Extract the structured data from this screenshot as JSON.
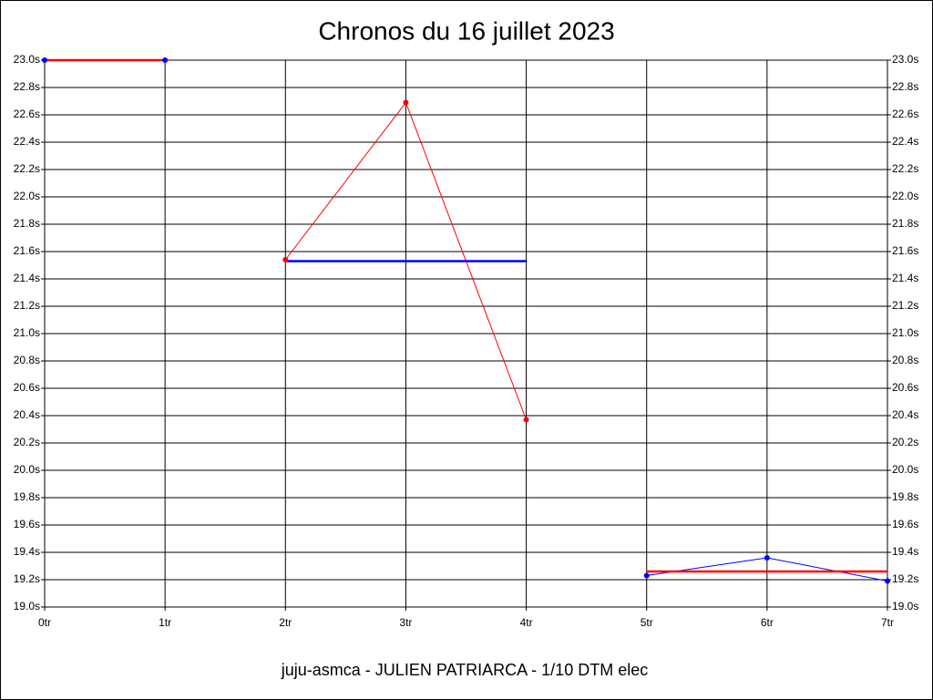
{
  "chart_data": {
    "type": "line",
    "title": "Chronos du 16 juillet 2023",
    "footer": "juju-asmca - JULIEN PATRIARCA - 1/10 DTM elec",
    "categories": [
      "0tr",
      "1tr",
      "2tr",
      "3tr",
      "4tr",
      "5tr",
      "6tr",
      "7tr"
    ],
    "series": [
      {
        "color": "#0000ff",
        "line_width": 1,
        "markers": true,
        "values": [
          23.0,
          23.0,
          null,
          null,
          null,
          19.23,
          19.36,
          19.19
        ]
      },
      {
        "color": "#ff0000",
        "line_width": 1,
        "markers": true,
        "values": [
          null,
          null,
          21.54,
          22.69,
          20.37,
          null,
          null,
          null
        ]
      },
      {
        "color": "#ff0000",
        "line_width": 2.5,
        "markers": false,
        "values": [
          23.0,
          23.0,
          null,
          null,
          null,
          19.26,
          19.26,
          19.26
        ]
      },
      {
        "color": "#0000ff",
        "line_width": 2.5,
        "markers": false,
        "values": [
          null,
          null,
          21.53,
          21.53,
          21.53,
          null,
          null,
          null
        ]
      }
    ],
    "ylim": [
      19.0,
      23.0
    ],
    "yticks": [
      {
        "value": 19.0,
        "label": "19.0s"
      },
      {
        "value": 19.2,
        "label": "19.2s"
      },
      {
        "value": 19.4,
        "label": "19.4s"
      },
      {
        "value": 19.6,
        "label": "19.6s"
      },
      {
        "value": 19.8,
        "label": "19.8s"
      },
      {
        "value": 20.0,
        "label": "20.0s"
      },
      {
        "value": 20.2,
        "label": "20.2s"
      },
      {
        "value": 20.4,
        "label": "20.4s"
      },
      {
        "value": 20.6,
        "label": "20.6s"
      },
      {
        "value": 20.8,
        "label": "20.8s"
      },
      {
        "value": 21.0,
        "label": "21.0s"
      },
      {
        "value": 21.2,
        "label": "21.2s"
      },
      {
        "value": 21.4,
        "label": "21.4s"
      },
      {
        "value": 21.6,
        "label": "21.6s"
      },
      {
        "value": 21.8,
        "label": "21.8s"
      },
      {
        "value": 22.0,
        "label": "22.0s"
      },
      {
        "value": 22.2,
        "label": "22.2s"
      },
      {
        "value": 22.4,
        "label": "22.4s"
      },
      {
        "value": 22.6,
        "label": "22.6s"
      },
      {
        "value": 22.8,
        "label": "22.8s"
      },
      {
        "value": 23.0,
        "label": "23.0s"
      }
    ],
    "grid": true
  }
}
